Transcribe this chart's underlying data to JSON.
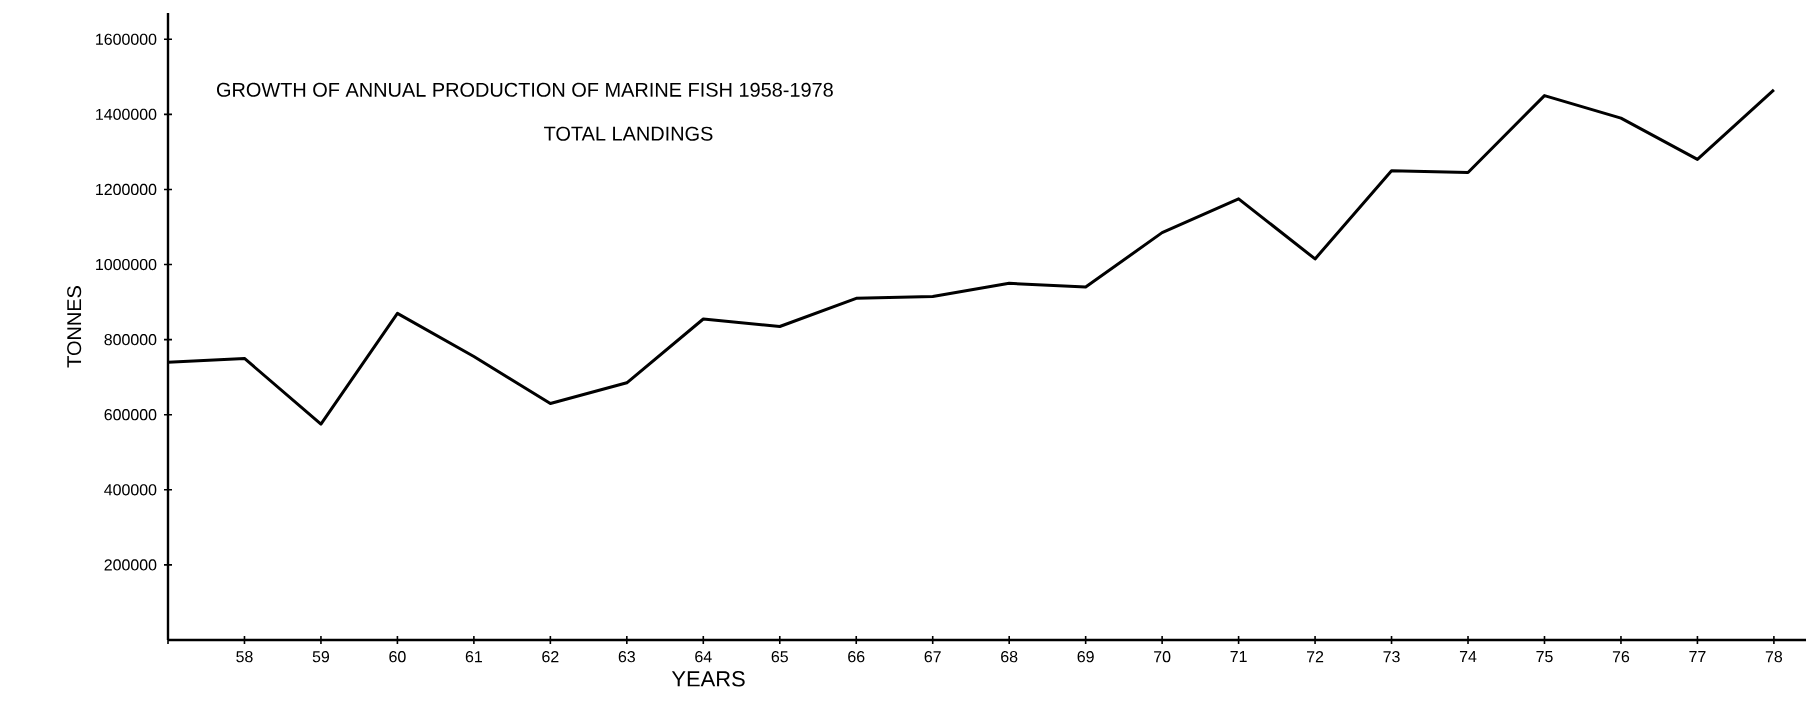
{
  "chart_data": {
    "type": "line",
    "title": "GROWTH OF ANNUAL PRODUCTION OF MARINE FISH 1958-1978",
    "subtitle": "TOTAL LANDINGS",
    "xlabel": "YEARS",
    "ylabel": "TONNES",
    "categories": [
      null,
      "58",
      "59",
      "60",
      "61",
      "62",
      "63",
      "64",
      "65",
      "66",
      "67",
      "68",
      "69",
      "70",
      "71",
      "72",
      "73",
      "74",
      "75",
      "76",
      "77",
      "78"
    ],
    "values": [
      740000,
      750000,
      575000,
      870000,
      755000,
      630000,
      685000,
      855000,
      835000,
      910000,
      915000,
      950000,
      940000,
      1085000,
      1175000,
      1015000,
      1250000,
      1245000,
      1450000,
      1390000,
      1280000,
      1465000
    ],
    "color": "#000000",
    "ylim": [
      0,
      1670000
    ],
    "yticks": [
      200000,
      400000,
      600000,
      800000,
      1000000,
      1200000,
      1400000,
      1600000
    ],
    "marker": "none",
    "line_style": "solid",
    "grid": false
  }
}
